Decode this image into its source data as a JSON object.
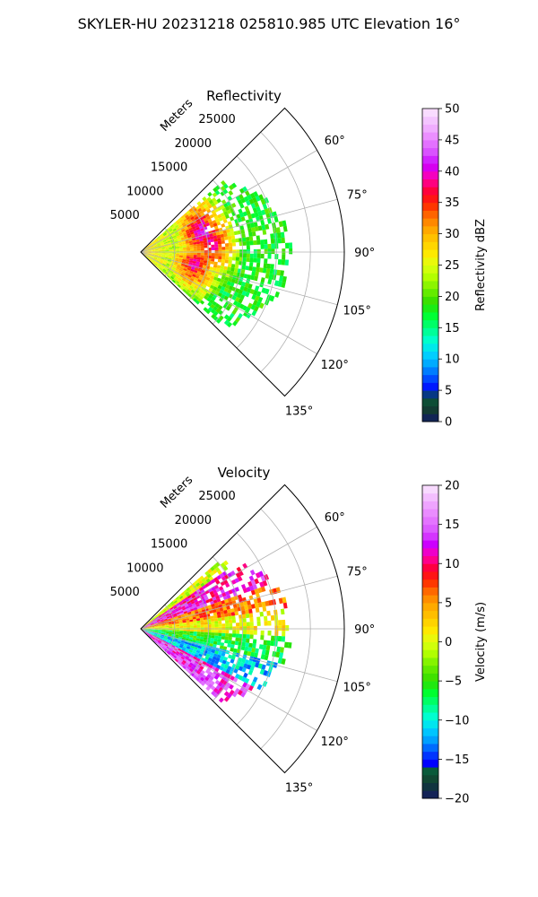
{
  "figure": {
    "suptitle": "SKYLER-HU  20231218  025810.985 UTC Elevation 16°"
  },
  "chart_data": [
    {
      "type": "heatmap",
      "projection": "polar",
      "title": "Reflectivity",
      "range_label": "Meters",
      "range_ticks": [
        5000,
        10000,
        15000,
        20000,
        25000
      ],
      "range_tick_labels": [
        "5000",
        "10000",
        "15000",
        "20000",
        "25000"
      ],
      "range_max": 30000,
      "azimuth_range_deg": [
        45,
        135
      ],
      "azimuth_ticks": [
        60,
        75,
        90,
        105,
        120,
        135
      ],
      "azimuth_tick_labels": [
        "60°",
        "75°",
        "90°",
        "105°",
        "120°",
        "135°"
      ],
      "grid": true,
      "colorbar": {
        "label": "Reflectivity dBZ",
        "limits": [
          0,
          50
        ],
        "ticks": [
          0,
          5,
          10,
          15,
          20,
          25,
          30,
          35,
          40,
          45,
          50
        ],
        "tick_labels": [
          "0",
          "5",
          "10",
          "15",
          "20",
          "25",
          "30",
          "35",
          "40",
          "45",
          "50"
        ],
        "stops": [
          {
            "v": 0,
            "c": "#1a1a5e"
          },
          {
            "v": 1,
            "c": "#0d2b4f"
          },
          {
            "v": 2,
            "c": "#143d2e"
          },
          {
            "v": 4,
            "c": "#0a5a3a"
          },
          {
            "v": 5,
            "c": "#0000ff"
          },
          {
            "v": 7,
            "c": "#0050ff"
          },
          {
            "v": 9,
            "c": "#00a0ff"
          },
          {
            "v": 11,
            "c": "#00d8ff"
          },
          {
            "v": 13,
            "c": "#00ffd0"
          },
          {
            "v": 15,
            "c": "#00ff80"
          },
          {
            "v": 17,
            "c": "#00ff30"
          },
          {
            "v": 19,
            "c": "#30dd00"
          },
          {
            "v": 21,
            "c": "#70ee00"
          },
          {
            "v": 23,
            "c": "#b0ff00"
          },
          {
            "v": 25,
            "c": "#e0ff10"
          },
          {
            "v": 27,
            "c": "#ffe800"
          },
          {
            "v": 29,
            "c": "#ffc800"
          },
          {
            "v": 31,
            "c": "#ffa000"
          },
          {
            "v": 33,
            "c": "#ff6800"
          },
          {
            "v": 35,
            "c": "#ff2000"
          },
          {
            "v": 37,
            "c": "#ff0040"
          },
          {
            "v": 39,
            "c": "#ff00b0"
          },
          {
            "v": 41,
            "c": "#cc00ff"
          },
          {
            "v": 43,
            "c": "#d850ff"
          },
          {
            "v": 45,
            "c": "#e880ff"
          },
          {
            "v": 47,
            "c": "#f0b0ff"
          },
          {
            "v": 50,
            "c": "#fbe8ff"
          }
        ]
      },
      "data_summary": {
        "field_max_range": 20000,
        "typical_far_value": 18,
        "near_value": 28,
        "cells": [
          {
            "azimuth": 72,
            "range": 9500,
            "value": 42
          },
          {
            "azimuth": 83,
            "range": 10500,
            "value": 40
          },
          {
            "azimuth": 103,
            "range": 8000,
            "value": 40
          },
          {
            "azimuth": 65,
            "range": 9000,
            "value": 35
          },
          {
            "azimuth": 110,
            "range": 9500,
            "value": 34
          }
        ]
      }
    },
    {
      "type": "heatmap",
      "projection": "polar",
      "title": "Velocity",
      "range_label": "Meters",
      "range_ticks": [
        5000,
        10000,
        15000,
        20000,
        25000
      ],
      "range_tick_labels": [
        "5000",
        "10000",
        "15000",
        "20000",
        "25000"
      ],
      "range_max": 30000,
      "azimuth_range_deg": [
        45,
        135
      ],
      "azimuth_ticks": [
        60,
        75,
        90,
        105,
        120,
        135
      ],
      "azimuth_tick_labels": [
        "60°",
        "75°",
        "90°",
        "105°",
        "120°",
        "135°"
      ],
      "grid": true,
      "colorbar": {
        "label": "Velocity (m/s)",
        "limits": [
          -20,
          20
        ],
        "ticks": [
          -20,
          -15,
          -10,
          -5,
          0,
          5,
          10,
          15,
          20
        ],
        "tick_labels": [
          "−20",
          "−15",
          "−10",
          "−5",
          "0",
          "5",
          "10",
          "15",
          "20"
        ],
        "stops": [
          {
            "v": -20,
            "c": "#1a1a5e"
          },
          {
            "v": -19,
            "c": "#0d2b4f"
          },
          {
            "v": -18,
            "c": "#143d2e"
          },
          {
            "v": -16.5,
            "c": "#0a5a3a"
          },
          {
            "v": -15.5,
            "c": "#0000ff"
          },
          {
            "v": -14,
            "c": "#0050ff"
          },
          {
            "v": -12.5,
            "c": "#00a0ff"
          },
          {
            "v": -11,
            "c": "#00d8ff"
          },
          {
            "v": -9.5,
            "c": "#00ffd0"
          },
          {
            "v": -8,
            "c": "#00ff80"
          },
          {
            "v": -6.5,
            "c": "#00ff30"
          },
          {
            "v": -5,
            "c": "#30dd00"
          },
          {
            "v": -3,
            "c": "#70ee00"
          },
          {
            "v": -1.5,
            "c": "#b0ff00"
          },
          {
            "v": 0,
            "c": "#e0ff10"
          },
          {
            "v": 1.5,
            "c": "#ffe800"
          },
          {
            "v": 3,
            "c": "#ffc800"
          },
          {
            "v": 5,
            "c": "#ffa000"
          },
          {
            "v": 6.5,
            "c": "#ff6800"
          },
          {
            "v": 8,
            "c": "#ff2000"
          },
          {
            "v": 9.5,
            "c": "#ff0040"
          },
          {
            "v": 11,
            "c": "#ff00b0"
          },
          {
            "v": 12.5,
            "c": "#cc00ff"
          },
          {
            "v": 14,
            "c": "#d850ff"
          },
          {
            "v": 16,
            "c": "#e880ff"
          },
          {
            "v": 18,
            "c": "#f0b0ff"
          },
          {
            "v": 20,
            "c": "#fbe8ff"
          }
        ]
      },
      "data_summary": {
        "field_max_range": 20000,
        "sectors": [
          {
            "azimuth_from": 55,
            "azimuth_to": 70,
            "value": 12
          },
          {
            "azimuth_from": 70,
            "azimuth_to": 82,
            "value": 6
          },
          {
            "azimuth_from": 82,
            "azimuth_to": 92,
            "value": 1
          },
          {
            "azimuth_from": 92,
            "azimuth_to": 105,
            "value": -6
          },
          {
            "azimuth_from": 105,
            "azimuth_to": 118,
            "value": -11
          },
          {
            "azimuth_from": 118,
            "azimuth_to": 132,
            "value": 13
          }
        ]
      }
    }
  ]
}
